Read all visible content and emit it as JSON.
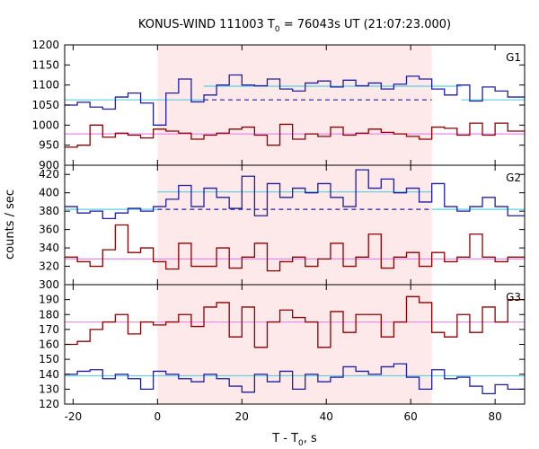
{
  "chart_data": {
    "type": "line",
    "title": "KONUS-WIND 111003 T0 = 76043s UT (21:07:23.000)",
    "title_parts": {
      "prefix": "KONUS-WIND 111003 T",
      "sub": "0",
      "suffix": " = 76043s UT (21:07:23.000)"
    },
    "xlabel_parts": {
      "prefix": "T - T",
      "sub": "0",
      "suffix": ", s"
    },
    "ylabel": "counts / sec",
    "x_range": [
      -22,
      87
    ],
    "x_ticks": [
      "-20",
      "0",
      "20",
      "40",
      "60",
      "80"
    ],
    "x_tick_values": [
      -20,
      0,
      20,
      40,
      60,
      80
    ],
    "bin_edges": [
      -22,
      -19,
      -16,
      -13,
      -10,
      -7,
      -4,
      -1,
      2,
      5,
      8,
      11,
      14,
      17,
      20,
      23,
      26,
      29,
      32,
      35,
      38,
      41,
      44,
      47,
      50,
      53,
      56,
      59,
      62,
      65,
      68,
      71,
      74,
      77,
      80,
      83,
      86
    ],
    "shaded_interval": [
      0,
      65
    ],
    "colors": {
      "blue": "#1f1fa0",
      "red": "#8b0000",
      "cyan": "#5ccfe0",
      "pink": "#e88ae8",
      "shade": "#fde8ea"
    },
    "panels": [
      {
        "label": "G1",
        "ylim": [
          900,
          1200
        ],
        "y_ticks": [
          900,
          950,
          1000,
          1050,
          1100,
          1150,
          1200
        ],
        "series": [
          {
            "color": "blue",
            "values": [
              1050,
              1057,
              1045,
              1040,
              1070,
              1080,
              1055,
              1000,
              1080,
              1115,
              1058,
              1075,
              1100,
              1125,
              1100,
              1098,
              1115,
              1090,
              1085,
              1105,
              1110,
              1095,
              1112,
              1098,
              1105,
              1090,
              1102,
              1122,
              1115,
              1090,
              1075,
              1100,
              1060,
              1095,
              1085,
              1070
            ]
          },
          {
            "color": "red",
            "values": [
              945,
              950,
              1000,
              970,
              980,
              975,
              968,
              990,
              985,
              980,
              965,
              975,
              980,
              990,
              995,
              975,
              950,
              1002,
              965,
              978,
              972,
              995,
              975,
              980,
              990,
              982,
              978,
              972,
              965,
              995,
              992,
              975,
              1005,
              975,
              1005,
              985
            ]
          }
        ],
        "baselines": [
          {
            "color": "cyan",
            "segments": [
              [
                -22,
                2,
                1063
              ],
              [
                2,
                11,
                1063
              ],
              [
                11,
                65,
                1097
              ],
              [
                65,
                72,
                1097
              ],
              [
                72,
                87,
                1063
              ]
            ]
          },
          {
            "color": "blue",
            "dashed": true,
            "segments": [
              [
                11,
                65,
                1063
              ]
            ]
          },
          {
            "color": "pink",
            "segments": [
              [
                -22,
                87,
                978
              ]
            ]
          }
        ]
      },
      {
        "label": "G2",
        "ylim": [
          300,
          430
        ],
        "y_ticks": [
          300,
          320,
          340,
          360,
          380,
          400,
          420
        ],
        "series": [
          {
            "color": "blue",
            "values": [
              385,
              378,
              380,
              372,
              378,
              383,
              380,
              385,
              393,
              408,
              385,
              405,
              395,
              383,
              418,
              375,
              410,
              395,
              405,
              400,
              410,
              395,
              385,
              425,
              405,
              415,
              400,
              405,
              390,
              410,
              385,
              380,
              385,
              395,
              385,
              375
            ]
          },
          {
            "color": "red",
            "values": [
              330,
              325,
              320,
              338,
              365,
              335,
              340,
              325,
              317,
              345,
              320,
              320,
              340,
              318,
              330,
              345,
              315,
              325,
              330,
              320,
              328,
              345,
              320,
              330,
              355,
              318,
              330,
              335,
              320,
              335,
              325,
              330,
              355,
              330,
              325,
              330
            ]
          }
        ],
        "baselines": [
          {
            "color": "cyan",
            "segments": [
              [
                -22,
                0,
                382
              ],
              [
                0,
                65,
                401
              ],
              [
                65,
                87,
                382
              ]
            ]
          },
          {
            "color": "blue",
            "dashed": true,
            "segments": [
              [
                0,
                65,
                382
              ]
            ]
          },
          {
            "color": "pink",
            "segments": [
              [
                -22,
                87,
                328
              ]
            ]
          }
        ]
      },
      {
        "label": "G3",
        "ylim": [
          120,
          200
        ],
        "y_ticks": [
          120,
          130,
          140,
          150,
          160,
          170,
          180,
          190,
          200
        ],
        "series": [
          {
            "color": "red",
            "values": [
              160,
              162,
              170,
              175,
              180,
              167,
              175,
              173,
              175,
              180,
              172,
              185,
              188,
              165,
              185,
              158,
              175,
              183,
              178,
              175,
              158,
              182,
              168,
              180,
              180,
              165,
              175,
              192,
              188,
              168,
              165,
              180,
              168,
              185,
              175,
              190
            ]
          },
          {
            "color": "blue",
            "values": [
              140,
              142,
              143,
              137,
              140,
              137,
              130,
              142,
              140,
              137,
              135,
              140,
              137,
              132,
              128,
              140,
              135,
              142,
              130,
              140,
              135,
              138,
              145,
              142,
              140,
              145,
              147,
              138,
              130,
              143,
              137,
              138,
              132,
              127,
              133,
              130
            ]
          }
        ],
        "baselines": [
          {
            "color": "cyan",
            "segments": [
              [
                -22,
                87,
                139
              ]
            ]
          },
          {
            "color": "pink",
            "segments": [
              [
                -22,
                87,
                175
              ]
            ]
          }
        ]
      }
    ]
  }
}
